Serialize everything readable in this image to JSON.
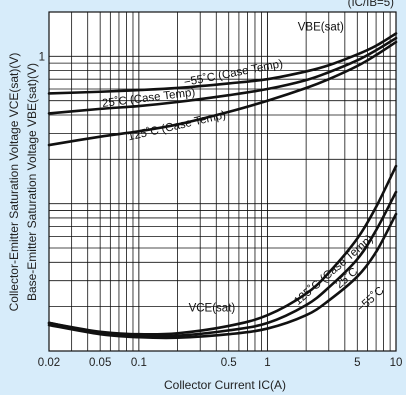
{
  "chart_data": {
    "type": "line",
    "x_scale": "log",
    "y_scale": "log",
    "xlim": [
      0.02,
      10
    ],
    "ylim": [
      0.01,
      2
    ],
    "grid": true,
    "condition_label": "(IC/IB=5)",
    "xlabel": "Collector Current IC(A)",
    "ylabel_lines": [
      "Collector-Emitter Saturation Voltage VCE(sat)(V)",
      "Base-Emitter Saturation Voltage VBE(sat)(V)"
    ],
    "x_ticks": [
      {
        "value": 0.02,
        "label": "0.02"
      },
      {
        "value": 0.05,
        "label": "0.05"
      },
      {
        "value": 0.1,
        "label": "0.1"
      },
      {
        "value": 0.5,
        "label": "0.5"
      },
      {
        "value": 1,
        "label": "1"
      },
      {
        "value": 5,
        "label": "5"
      },
      {
        "value": 10,
        "label": "10"
      }
    ],
    "y_ticks": [
      {
        "value": 1,
        "label": "1"
      }
    ],
    "series": [
      {
        "name": "VBE(sat) −55˚C (Case Temp)",
        "x": [
          0.02,
          0.05,
          0.1,
          0.2,
          0.5,
          1,
          2,
          3,
          5,
          7,
          10
        ],
        "y": [
          0.56,
          0.575,
          0.59,
          0.61,
          0.655,
          0.7,
          0.79,
          0.87,
          1.03,
          1.18,
          1.43
        ]
      },
      {
        "name": "VBE(sat) 25˚C (Case Temp)",
        "x": [
          0.02,
          0.05,
          0.1,
          0.2,
          0.5,
          1,
          2,
          3,
          5,
          7,
          10
        ],
        "y": [
          0.41,
          0.44,
          0.46,
          0.49,
          0.545,
          0.6,
          0.69,
          0.78,
          0.94,
          1.1,
          1.33
        ]
      },
      {
        "name": "VBE(sat) 125˚C (Case Temp)",
        "x": [
          0.02,
          0.05,
          0.1,
          0.2,
          0.5,
          1,
          2,
          3,
          5,
          7,
          10
        ],
        "y": [
          0.25,
          0.285,
          0.31,
          0.345,
          0.42,
          0.5,
          0.61,
          0.7,
          0.86,
          1.02,
          1.25
        ]
      },
      {
        "name": "VCE(sat) 125˚C (Case Temp)",
        "x": [
          0.02,
          0.05,
          0.1,
          0.2,
          0.5,
          1,
          2,
          3,
          5,
          7,
          10
        ],
        "y": [
          0.0155,
          0.0135,
          0.013,
          0.0132,
          0.0148,
          0.0175,
          0.0245,
          0.034,
          0.058,
          0.095,
          0.18
        ]
      },
      {
        "name": "VCE(sat) 25˚C",
        "x": [
          0.02,
          0.05,
          0.1,
          0.2,
          0.5,
          1,
          2,
          3,
          5,
          7,
          10
        ],
        "y": [
          0.0155,
          0.0133,
          0.0127,
          0.0127,
          0.0138,
          0.0155,
          0.0205,
          0.027,
          0.042,
          0.066,
          0.12
        ]
      },
      {
        "name": "VCE(sat) −55˚C",
        "x": [
          0.02,
          0.05,
          0.1,
          0.2,
          0.5,
          1,
          2,
          3,
          5,
          7,
          10
        ],
        "y": [
          0.015,
          0.013,
          0.0124,
          0.0123,
          0.013,
          0.0142,
          0.0175,
          0.022,
          0.032,
          0.047,
          0.085
        ]
      }
    ],
    "annotations": [
      {
        "text": "VBE(sat)",
        "x": 2.6,
        "y": 1.5,
        "angle": 0
      },
      {
        "text": "−55˚C (Case Temp)",
        "x": 0.55,
        "y": 0.73,
        "angle": -11
      },
      {
        "text": "25˚C (Case Temp)",
        "x": 0.12,
        "y": 0.495,
        "angle": -7
      },
      {
        "text": "125˚C (Case Temp)",
        "x": 0.2,
        "y": 0.32,
        "angle": -13
      },
      {
        "text": "VCE(sat)",
        "x": 0.37,
        "y": 0.0185,
        "angle": 0
      },
      {
        "text": "125˚C (Case Temp)",
        "x": 3.4,
        "y": 0.034,
        "angle": -41
      },
      {
        "text": "25˚C",
        "x": 4.3,
        "y": 0.03,
        "angle": -41
      },
      {
        "text": "−55˚C",
        "x": 6.6,
        "y": 0.0215,
        "angle": -42
      }
    ]
  }
}
